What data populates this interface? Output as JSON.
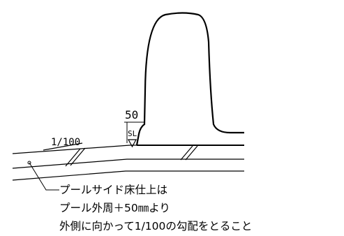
{
  "drawing": {
    "slope_label": "1/100",
    "level_offset": "50",
    "level_marker": "SL",
    "note": {
      "line1": "プールサイド床仕上は",
      "line2": "プール外周＋50㎜より",
      "line3": "外側に向かって1/100の勾配をとること"
    }
  }
}
